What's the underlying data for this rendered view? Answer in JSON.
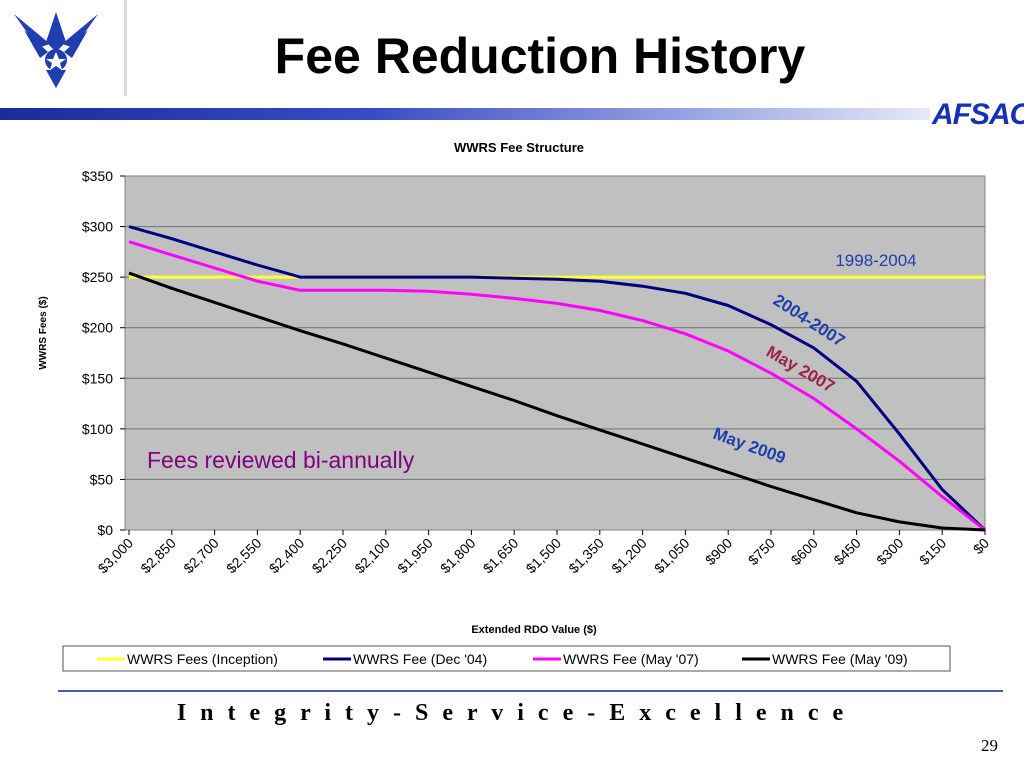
{
  "slide": {
    "title": "Fee Reduction History",
    "brand": "AFSAC",
    "motto": "I n t e g r i t y  -  S e r v i c e  -  E x c e l l e n c e",
    "page_number": "29",
    "logo_icon": "air-force-wings-icon",
    "colors": {
      "brand_blue": "#1730b4",
      "inception": "#ffff33",
      "dec04": "#000080",
      "may07": "#ff00ff",
      "may09": "#000000"
    }
  },
  "chart_data": {
    "type": "line",
    "title": "WWRS Fee Structure",
    "xlabel": "Extended RDO Value ($)",
    "ylabel": "WWRS Fees ($)",
    "x_reversed": true,
    "xlim": [
      0,
      3000
    ],
    "ylim": [
      0,
      350
    ],
    "yticks": [
      0,
      50,
      100,
      150,
      200,
      250,
      300,
      350
    ],
    "ytick_labels": [
      "$0",
      "$50",
      "$100",
      "$150",
      "$200",
      "$250",
      "$300",
      "$350"
    ],
    "xtick_labels": [
      "$3,000",
      "$2,850",
      "$2,700",
      "$2,550",
      "$2,400",
      "$2,250",
      "$2,100",
      "$1,950",
      "$1,800",
      "$1,650",
      "$1,500",
      "$1,350",
      "$1,200",
      "$1,050",
      "$900",
      "$750",
      "$600",
      "$450",
      "$300",
      "$150",
      "$0"
    ],
    "x": [
      3000,
      2850,
      2700,
      2550,
      2400,
      2250,
      2100,
      1950,
      1800,
      1650,
      1500,
      1350,
      1200,
      1050,
      900,
      750,
      600,
      450,
      300,
      150,
      0
    ],
    "grid": true,
    "legend_position": "bottom",
    "series": [
      {
        "name": "WWRS Fees (Inception)",
        "color": "#ffff33",
        "values": [
          250,
          250,
          250,
          250,
          250,
          250,
          250,
          250,
          250,
          250,
          250,
          250,
          250,
          250,
          250,
          250,
          250,
          250,
          250,
          250,
          250
        ]
      },
      {
        "name": "WWRS Fee (Dec '04)",
        "color": "#000080",
        "values": [
          300,
          288,
          275,
          262,
          250,
          250,
          250,
          250,
          250,
          249,
          248,
          246,
          241,
          234,
          222,
          203,
          180,
          147,
          95,
          40,
          0
        ]
      },
      {
        "name": "WWRS Fee (May '07)",
        "color": "#ff00ff",
        "values": [
          285,
          272,
          259,
          246,
          237,
          237,
          237,
          236,
          233,
          229,
          224,
          217,
          207,
          194,
          177,
          155,
          130,
          100,
          68,
          33,
          0
        ]
      },
      {
        "name": "WWRS Fee (May '09)",
        "color": "#000000",
        "values": [
          254,
          239,
          225,
          211,
          197,
          184,
          170,
          156,
          142,
          128,
          113,
          99,
          85,
          71,
          57,
          43,
          30,
          17,
          8,
          2,
          0
        ]
      }
    ],
    "annotations": [
      {
        "text": "1998-2004",
        "color": "#1f3fb0"
      },
      {
        "text": "2004-2007",
        "color": "#1f3fb0"
      },
      {
        "text": "May 2007",
        "color": "#a0204a"
      },
      {
        "text": "May 2009",
        "color": "#1f3fb0"
      },
      {
        "text": "Fees reviewed bi-annually",
        "color": "#800080"
      }
    ]
  }
}
